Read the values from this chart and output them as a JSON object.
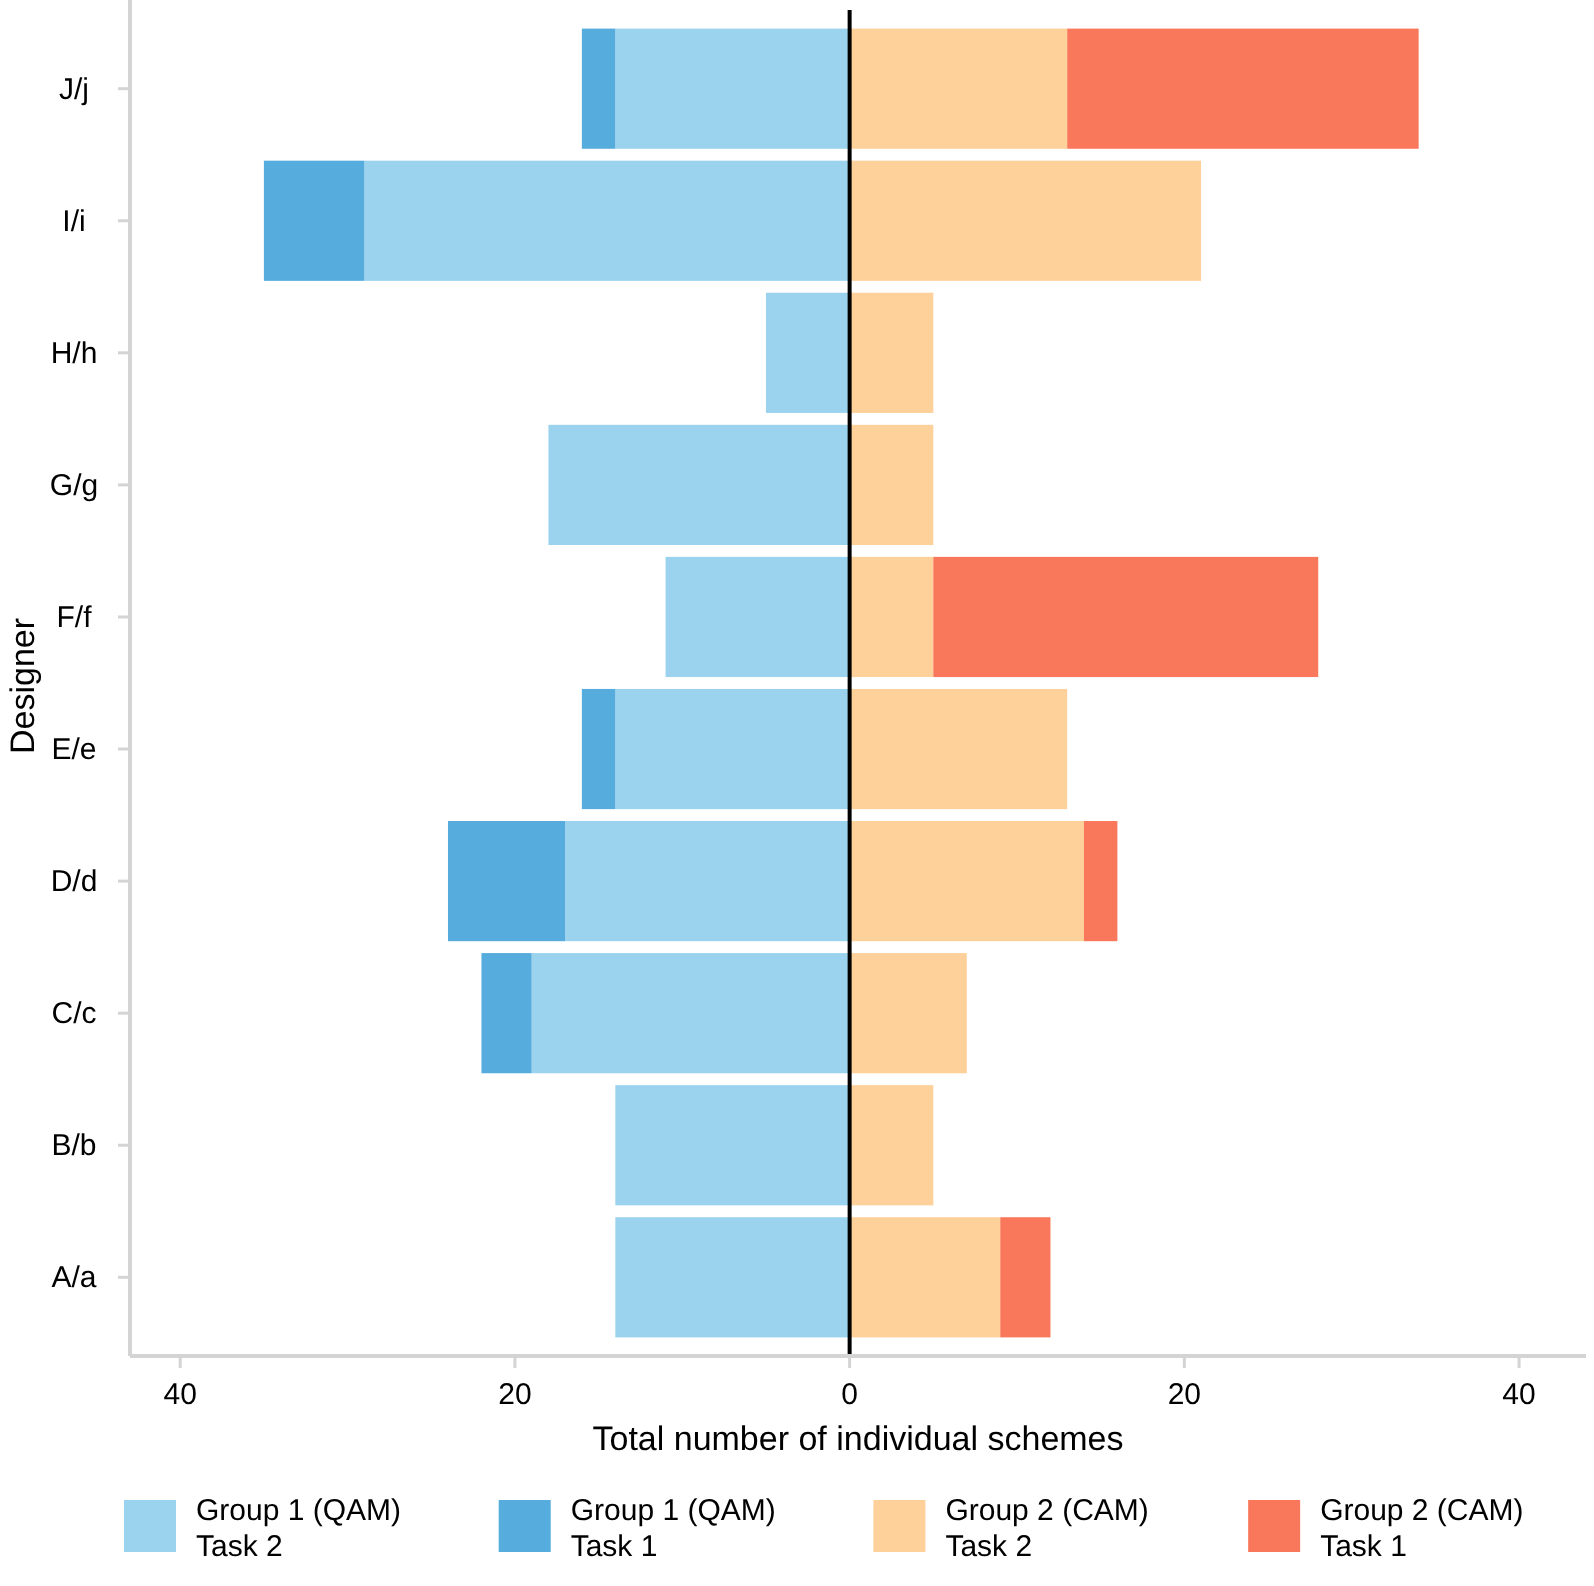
{
  "chart_data": {
    "type": "bar",
    "orientation": "horizontal",
    "stacked": true,
    "xlabel": "Total number of individual schemes",
    "ylabel": "Designer",
    "categories": [
      "J/j",
      "I/i",
      "H/h",
      "G/g",
      "F/f",
      "E/e",
      "D/d",
      "C/c",
      "B/b",
      "A/a"
    ],
    "series": [
      {
        "name": "Group 1 (QAM)\nTask 2",
        "color": "#9bd3ee",
        "values": [
          -14,
          -29,
          -5,
          -18,
          -11,
          -14,
          -17,
          -19,
          -14,
          -14
        ]
      },
      {
        "name": "Group 1 (QAM)\nTask 1",
        "color": "#56acdc",
        "values": [
          -2,
          -6,
          0,
          0,
          0,
          -2,
          -7,
          -3,
          0,
          0
        ]
      },
      {
        "name": "Group 2 (CAM)\nTask 2",
        "color": "#fed09a",
        "values": [
          13,
          21,
          5,
          5,
          5,
          13,
          14,
          7,
          5,
          9
        ]
      },
      {
        "name": "Group 2 (CAM)\nTask 1",
        "color": "#f9785b",
        "values": [
          21,
          0,
          0,
          0,
          23,
          0,
          2,
          0,
          0,
          3
        ]
      }
    ],
    "xlim": [
      -43,
      44
    ],
    "xticks": [
      {
        "value": -40,
        "label": "40"
      },
      {
        "value": -20,
        "label": "20"
      },
      0,
      20,
      40
    ],
    "ref_lines": [
      {
        "axis": "x",
        "value": 0,
        "color": "#000000"
      }
    ],
    "legend": "bottom"
  }
}
